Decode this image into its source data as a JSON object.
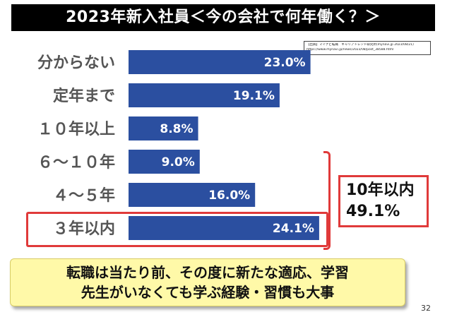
{
  "title": "2023年新入社員＜今の会社で何年働く？＞",
  "source": {
    "line1": "【出典】マイナビ転職　キャリアトレンド研究所(mynavi.jp 2023/08/21)",
    "line2": "https://www.mynavi.jp/news/2023/08/post_38588.html"
  },
  "chart_data": {
    "type": "bar",
    "orientation": "horizontal",
    "categories": [
      "分からない",
      "定年まで",
      "１０年以上",
      "６～１０年",
      "４～５年",
      "３年以内"
    ],
    "values": [
      23.0,
      19.1,
      8.8,
      9.0,
      16.0,
      24.1
    ],
    "value_labels": [
      "23.0%",
      "19.1%",
      "8.8%",
      "9.0%",
      "16.0%",
      "24.1%"
    ],
    "unit": "%",
    "xlim": [
      0,
      25
    ],
    "bar_color": "#2b4fa0",
    "grid": false,
    "legend": "none"
  },
  "callout": {
    "line1": "10年以内",
    "line2": "49.1%",
    "color": "#e03a3a"
  },
  "banner": {
    "line1": "転職は当たり前、その度に新たな適応、学習",
    "line2": "先生がいなくても学ぶ経験・習慣も大事"
  },
  "page_number": "32"
}
